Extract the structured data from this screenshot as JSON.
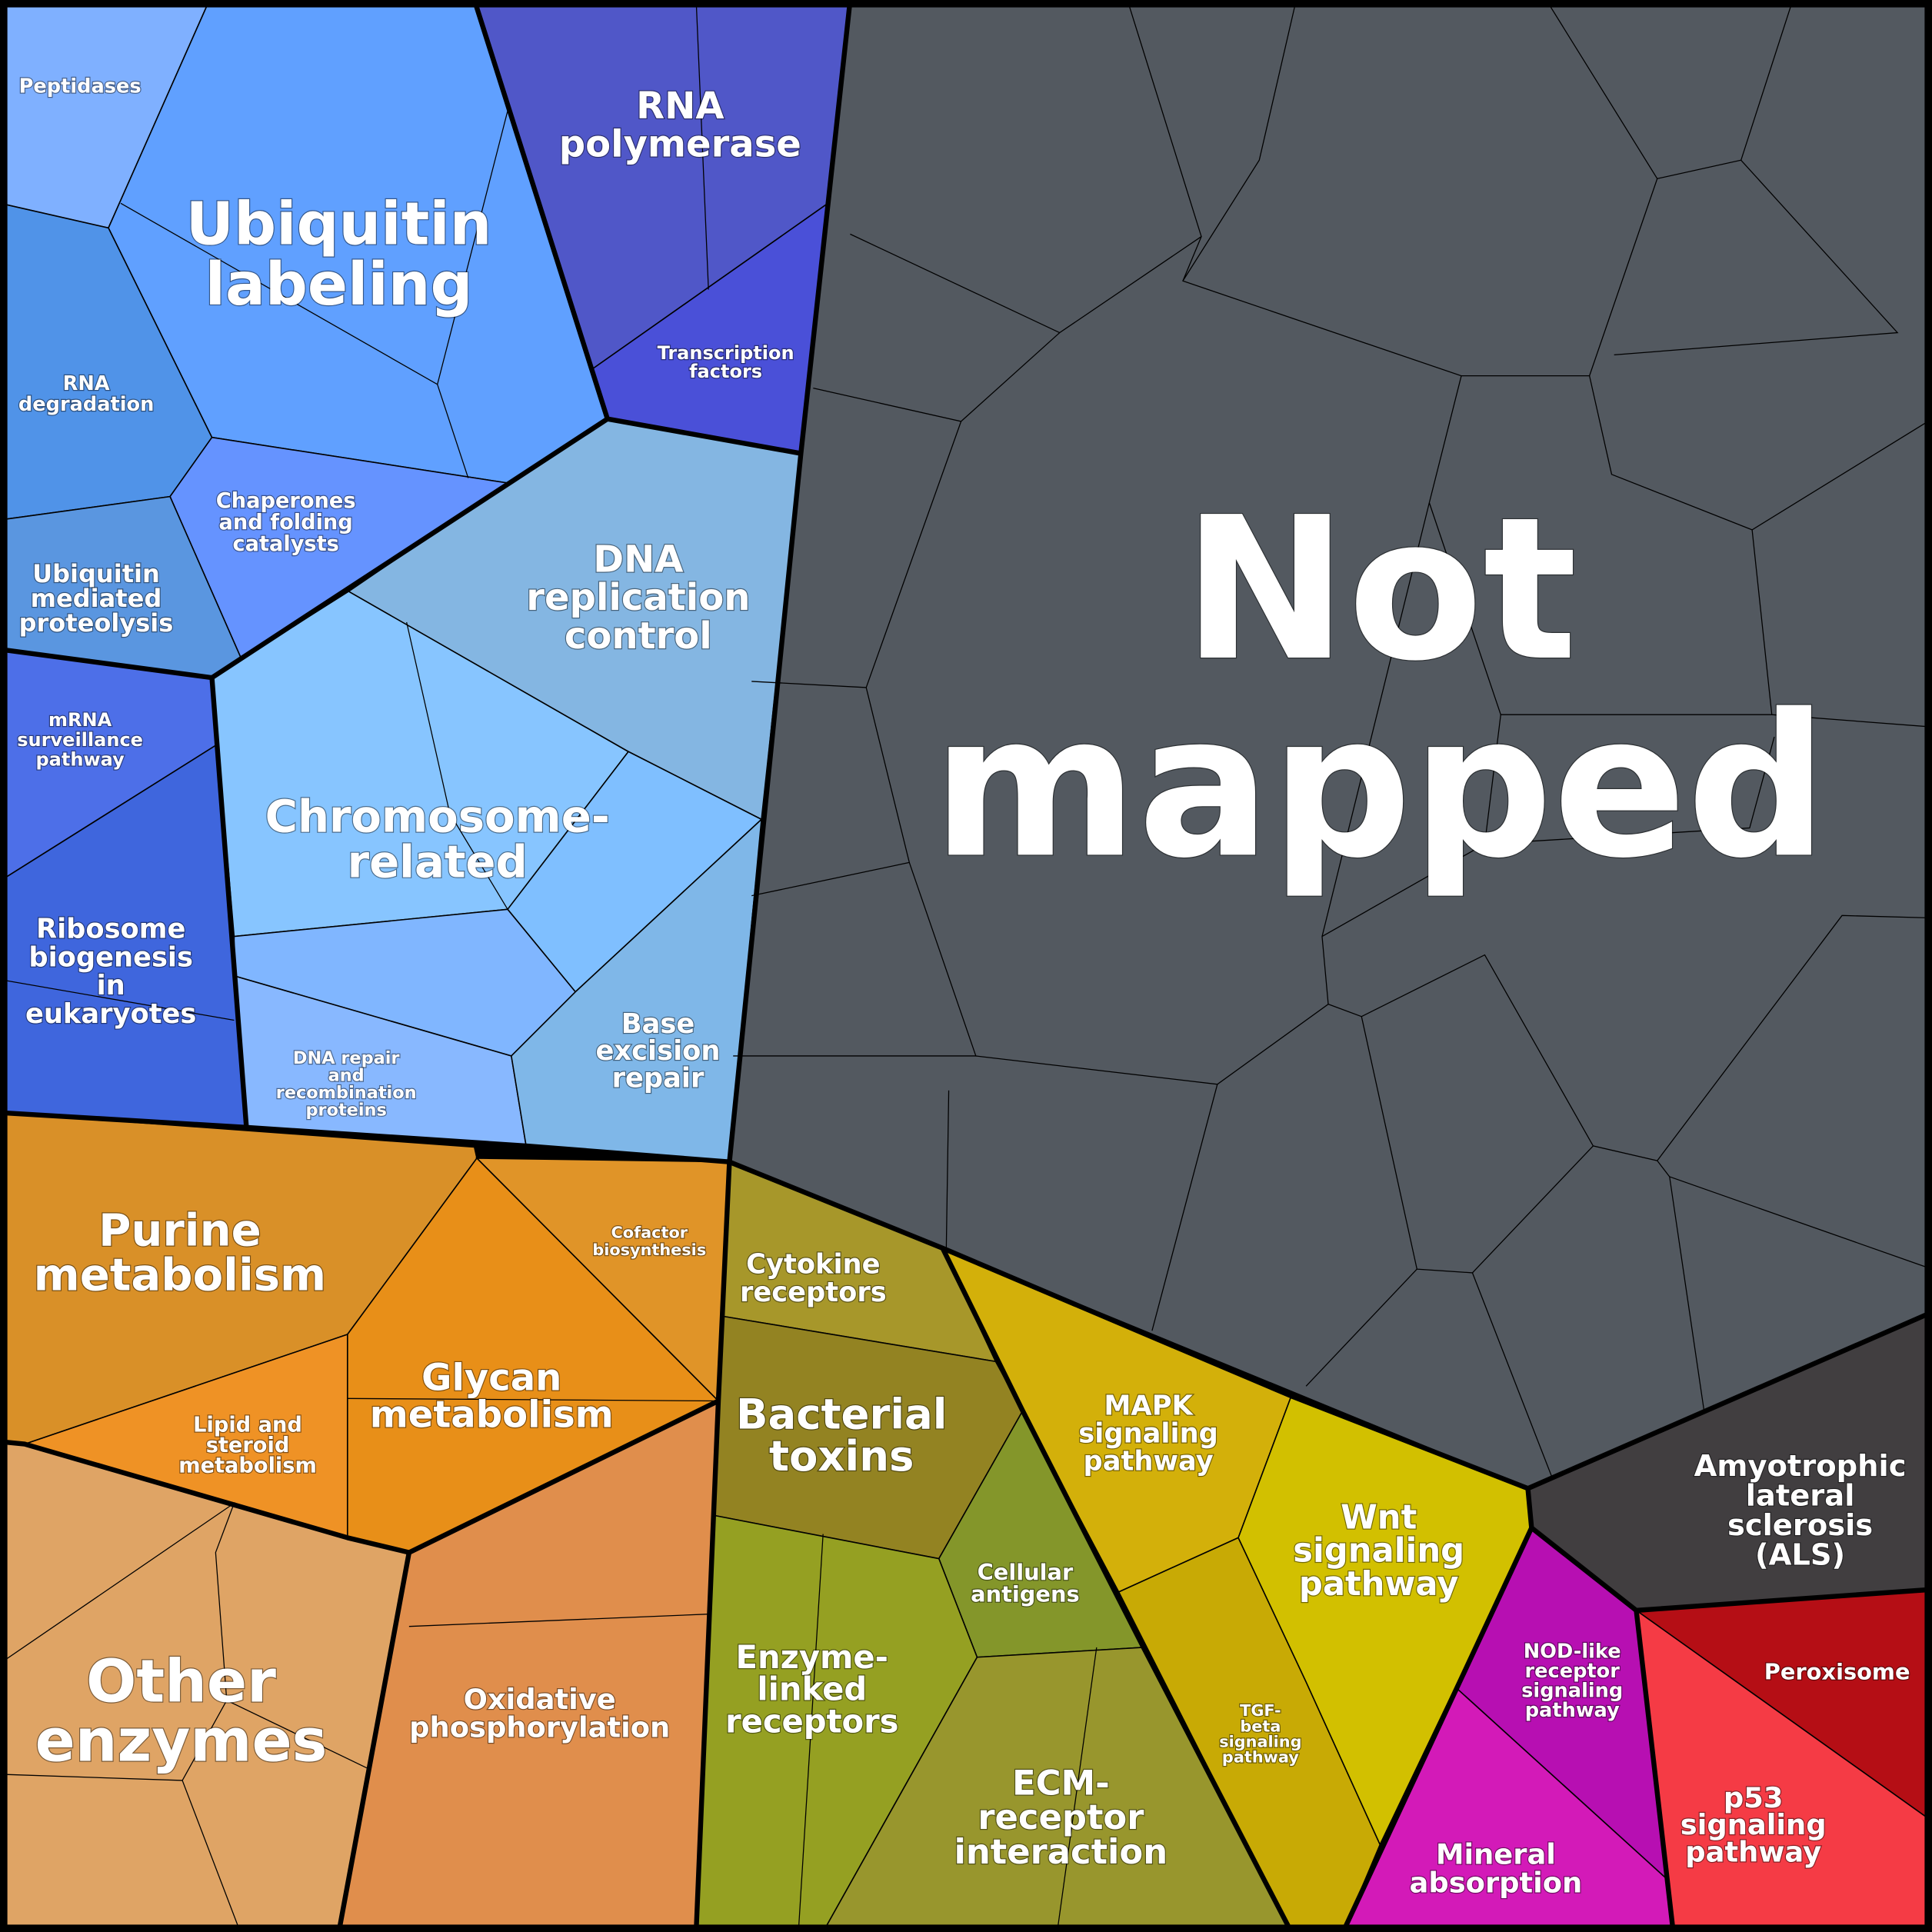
{
  "cells": [
    {
      "label": [
        "Peptidases"
      ]
    },
    {
      "label": [
        "Ubiquitin",
        "labeling"
      ]
    },
    {
      "label": [
        "RNA",
        "degradation"
      ]
    },
    {
      "label": [
        "Chaperones",
        "and folding",
        "catalysts"
      ]
    },
    {
      "label": [
        "Ubiquitin",
        "mediated",
        "proteolysis"
      ]
    },
    {
      "label": [
        "RNA",
        "polymerase"
      ]
    },
    {
      "label": [
        "Transcription",
        "factors"
      ]
    },
    {
      "label": [
        "mRNA",
        "surveillance",
        "pathway"
      ]
    },
    {
      "label": [
        "Ribosome",
        "biogenesis",
        "in",
        "eukaryotes"
      ]
    },
    {
      "label": [
        "DNA",
        "replication",
        "control"
      ]
    },
    {
      "label": [
        "Chromosome-",
        "related"
      ]
    },
    {
      "label": [
        "DNA repair",
        "and",
        "recombination",
        "proteins"
      ]
    },
    {
      "label": [
        "Base",
        "excision",
        "repair"
      ]
    },
    {
      "label": [
        "Not",
        "mapped"
      ]
    },
    {
      "label": [
        "Purine",
        "metabolism"
      ]
    },
    {
      "label": [
        "Cofactor",
        "biosynthesis"
      ]
    },
    {
      "label": [
        "Glycan",
        "metabolism"
      ]
    },
    {
      "label": [
        "Lipid and",
        "steroid",
        "metabolism"
      ]
    },
    {
      "label": [
        "Other",
        "enzymes"
      ]
    },
    {
      "label": [
        "Oxidative",
        "phosphorylation"
      ]
    },
    {
      "label": [
        "Cytokine",
        "receptors"
      ]
    },
    {
      "label": [
        "Bacterial",
        "toxins"
      ]
    },
    {
      "label": [
        "Cellular",
        "antigens"
      ]
    },
    {
      "label": [
        "Enzyme-",
        "linked",
        "receptors"
      ]
    },
    {
      "label": [
        "ECM-",
        "receptor",
        "interaction"
      ]
    },
    {
      "label": [
        "MAPK",
        "signaling",
        "pathway"
      ]
    },
    {
      "label": [
        "TGF-",
        "beta",
        "signaling",
        "pathway"
      ]
    },
    {
      "label": [
        "Wnt",
        "signaling",
        "pathway"
      ]
    },
    {
      "label": [
        "Amyotrophic",
        "lateral",
        "sclerosis",
        "(ALS)"
      ]
    },
    {
      "label": [
        "NOD-like",
        "receptor",
        "signaling",
        "pathway"
      ]
    },
    {
      "label": [
        "Mineral",
        "absorption"
      ]
    },
    {
      "label": [
        "Peroxisome"
      ]
    },
    {
      "label": [
        "p53",
        "signaling",
        "pathway"
      ]
    }
  ]
}
